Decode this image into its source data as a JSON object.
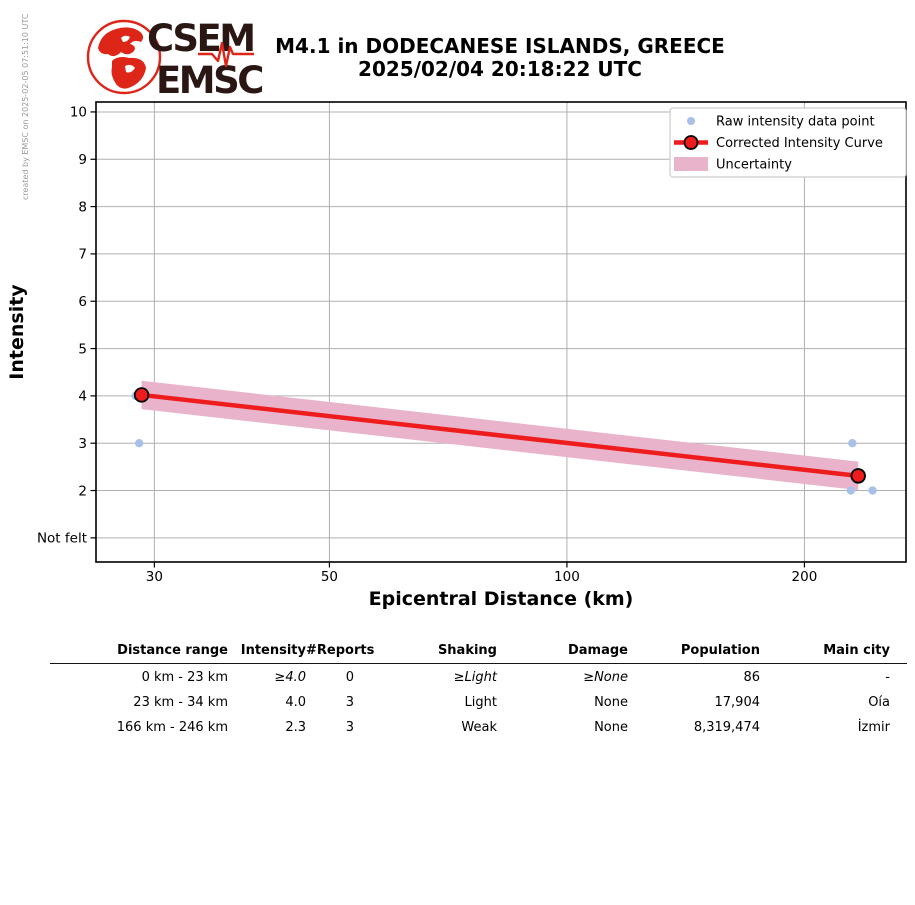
{
  "header": {
    "credit": "created by EMSC on 2025-02-05 07:51:10 UTC",
    "logo": {
      "line1": "CSEM",
      "line2": "EMSC"
    },
    "title_line1": "M4.1 in DODECANESE ISLANDS, GREECE",
    "title_line2": "2025/02/04 20:18:22 UTC"
  },
  "chart_data": {
    "type": "line",
    "xlabel": "Epicentral Distance (km)",
    "ylabel": "Intensity",
    "xscale": "log",
    "grid": true,
    "xlim": [
      25.3,
      269
    ],
    "x_ticks": [
      30,
      50,
      100,
      200
    ],
    "y_ticks": [
      {
        "v": 10,
        "label": "10"
      },
      {
        "v": 9,
        "label": "9"
      },
      {
        "v": 8,
        "label": "8"
      },
      {
        "v": 7,
        "label": "7"
      },
      {
        "v": 6,
        "label": "6"
      },
      {
        "v": 5,
        "label": "5"
      },
      {
        "v": 4,
        "label": "4"
      },
      {
        "v": 3,
        "label": "3"
      },
      {
        "v": 2,
        "label": "2"
      },
      {
        "v": 1,
        "label": "Not felt"
      }
    ],
    "raw_points": [
      {
        "d": 28.4,
        "i": 4
      },
      {
        "d": 28.7,
        "i": 3
      },
      {
        "d": 230,
        "i": 3
      },
      {
        "d": 229,
        "i": 2
      },
      {
        "d": 244,
        "i": 2
      }
    ],
    "corrected_curve": [
      {
        "d": 28.9,
        "i": 4.02
      },
      {
        "d": 234,
        "i": 2.31
      }
    ],
    "uncertainty_halfwidth": 0.3,
    "legend_position": "upper right",
    "legend": [
      {
        "type": "point",
        "label": "Raw intensity data point"
      },
      {
        "type": "line_marker",
        "label": "Corrected Intensity Curve"
      },
      {
        "type": "patch",
        "label": "Uncertainty"
      }
    ],
    "colors": {
      "raw_point": "#a9c0e8",
      "curve": "#ee1c1c",
      "curve_marker_edge": "#000000",
      "band": "#e9b3cb",
      "grid": "#b0b0b0",
      "logo_red": "#dd2518"
    }
  },
  "table": {
    "headers": [
      "Distance range",
      "Intensity",
      "#Reports",
      "Shaking",
      "Damage",
      "Population",
      "Main city"
    ],
    "rows": [
      {
        "cells": [
          "0 km - 23 km",
          "≥4.0",
          "0",
          "≥Light",
          "≥None",
          "86",
          "-"
        ],
        "italic": [
          false,
          true,
          false,
          true,
          true,
          false,
          false
        ]
      },
      {
        "cells": [
          "23 km - 34 km",
          "4.0",
          "3",
          "Light",
          "None",
          "17,904",
          "Oía"
        ],
        "italic": [
          false,
          false,
          false,
          false,
          false,
          false,
          false
        ]
      },
      {
        "cells": [
          "166 km - 246 km",
          "2.3",
          "3",
          "Weak",
          "None",
          "8,319,474",
          "İzmir"
        ],
        "italic": [
          false,
          false,
          false,
          false,
          false,
          false,
          false
        ]
      }
    ]
  }
}
